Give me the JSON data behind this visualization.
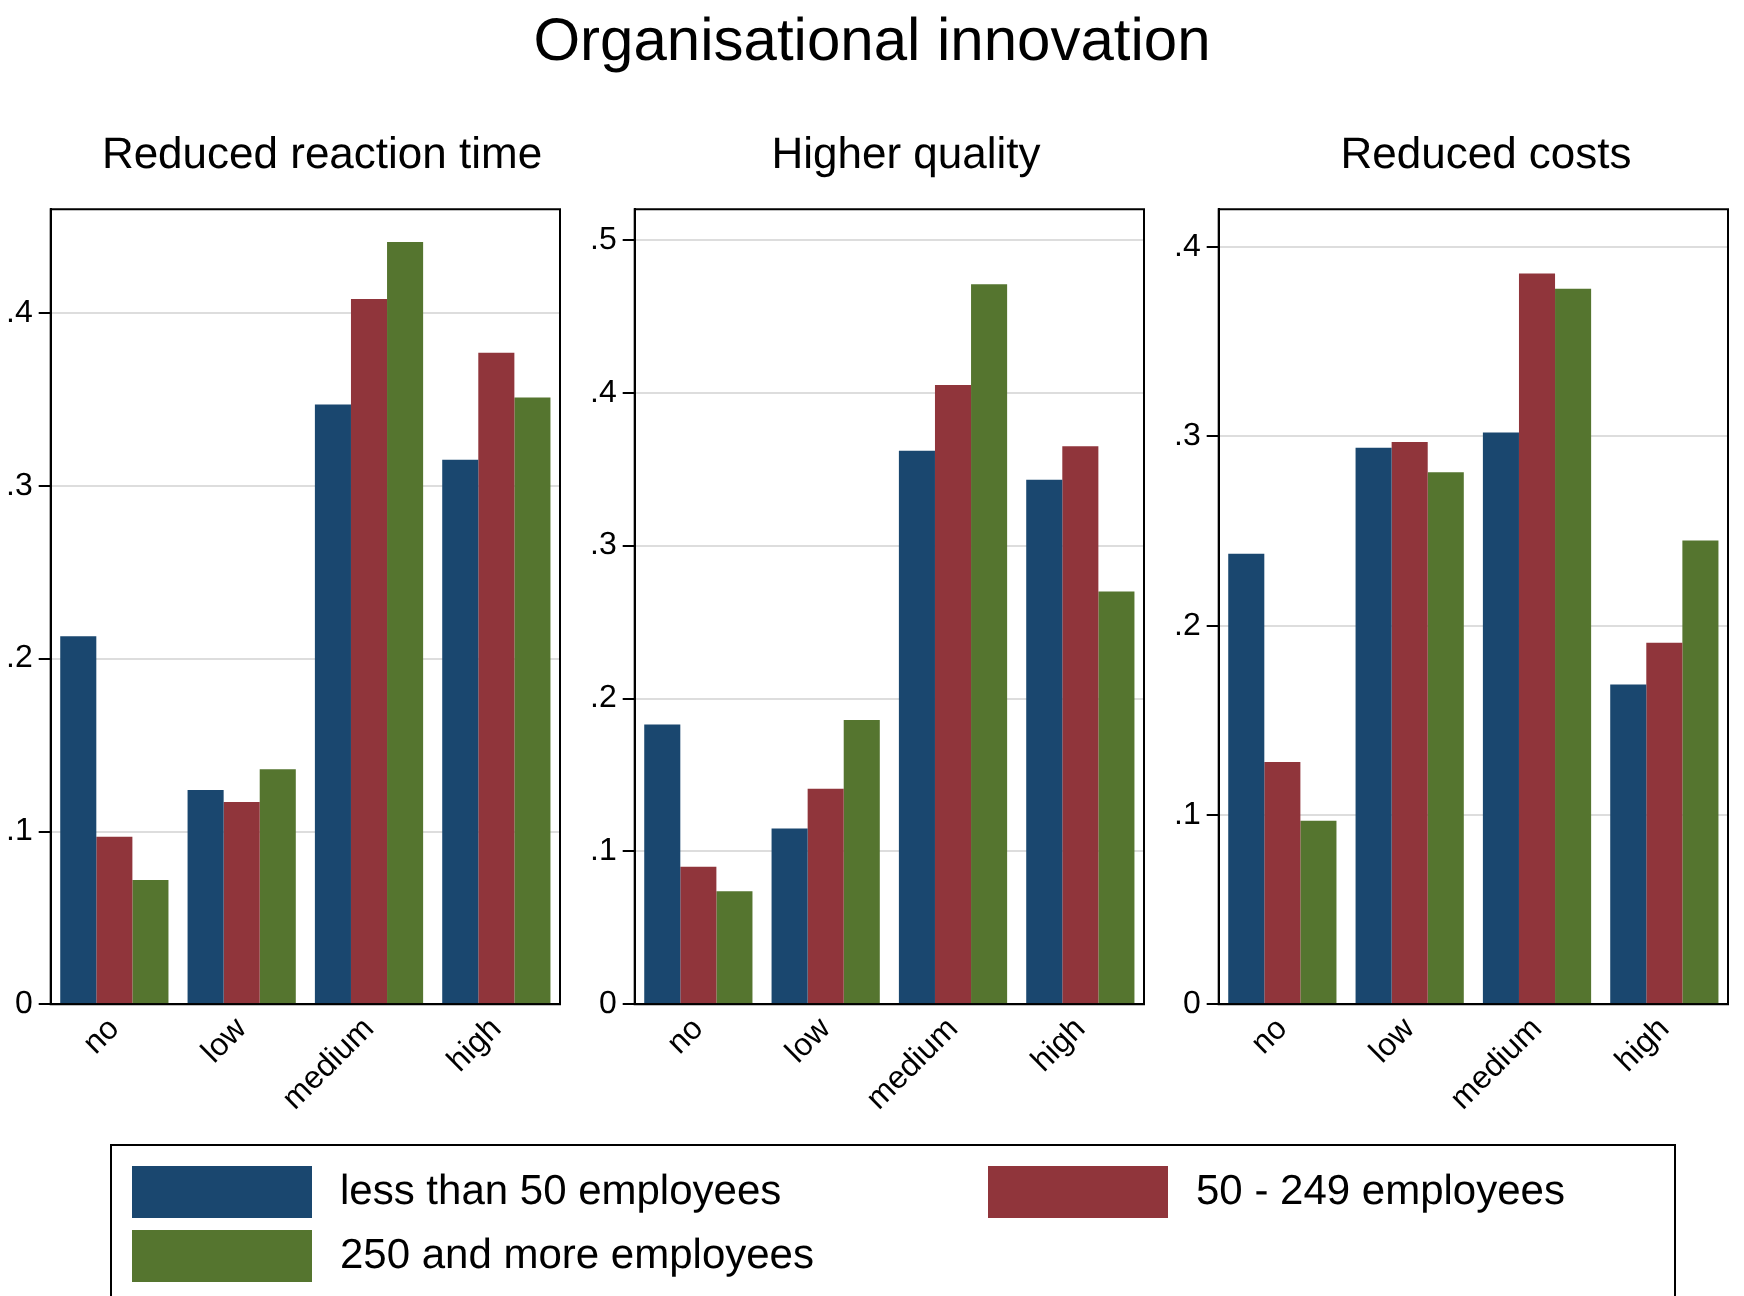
{
  "chart_data": [
    {
      "type": "bar",
      "title": "Reduced reaction time",
      "annotations": [
        "Organisational innovation"
      ],
      "categories": [
        "no",
        "low",
        "medium",
        "high"
      ],
      "series": [
        {
          "name": "less than 50 employees",
          "color": "#1a476f",
          "values": [
            0.213,
            0.124,
            0.347,
            0.315
          ]
        },
        {
          "name": "50 - 249 employees",
          "color": "#90353b",
          "values": [
            0.097,
            0.117,
            0.408,
            0.377
          ]
        },
        {
          "name": "250 and more employees",
          "color": "#55752f",
          "values": [
            0.072,
            0.136,
            0.441,
            0.351
          ]
        }
      ],
      "ylim": [
        0,
        0.46
      ],
      "yticks": [
        {
          "value": 0,
          "label": "0"
        },
        {
          "value": 0.1,
          "label": ".1"
        },
        {
          "value": 0.2,
          "label": ".2"
        },
        {
          "value": 0.3,
          "label": ".3"
        },
        {
          "value": 0.4,
          "label": ".4"
        }
      ],
      "grid": "y",
      "legend": "bottom"
    },
    {
      "type": "bar",
      "title": "Higher quality",
      "categories": [
        "no",
        "low",
        "medium",
        "high"
      ],
      "series": [
        {
          "color": "#1a476f",
          "values": [
            0.183,
            0.115,
            0.362,
            0.343
          ]
        },
        {
          "color": "#90353b",
          "values": [
            0.09,
            0.141,
            0.405,
            0.365
          ]
        },
        {
          "color": "#55752f",
          "values": [
            0.074,
            0.186,
            0.471,
            0.27
          ]
        }
      ],
      "ylim": [
        0,
        0.52
      ],
      "yticks": [
        {
          "value": 0,
          "label": "0"
        },
        {
          "value": 0.1,
          "label": ".1"
        },
        {
          "value": 0.2,
          "label": ".2"
        },
        {
          "value": 0.3,
          "label": ".3"
        },
        {
          "value": 0.4,
          "label": ".4"
        },
        {
          "value": 0.5,
          "label": ".5"
        }
      ],
      "grid": "y"
    },
    {
      "type": "bar",
      "title": "Reduced costs",
      "categories": [
        "no",
        "low",
        "medium",
        "high"
      ],
      "series": [
        {
          "color": "#1a476f",
          "values": [
            0.238,
            0.294,
            0.302,
            0.169
          ]
        },
        {
          "color": "#90353b",
          "values": [
            0.128,
            0.297,
            0.386,
            0.191
          ]
        },
        {
          "color": "#55752f",
          "values": [
            0.097,
            0.281,
            0.378,
            0.245
          ]
        }
      ],
      "ylim": [
        0,
        0.42
      ],
      "yticks": [
        {
          "value": 0,
          "label": "0"
        },
        {
          "value": 0.1,
          "label": ".1"
        },
        {
          "value": 0.2,
          "label": ".2"
        },
        {
          "value": 0.3,
          "label": ".3"
        },
        {
          "value": 0.4,
          "label": ".4"
        }
      ],
      "grid": "y"
    }
  ]
}
